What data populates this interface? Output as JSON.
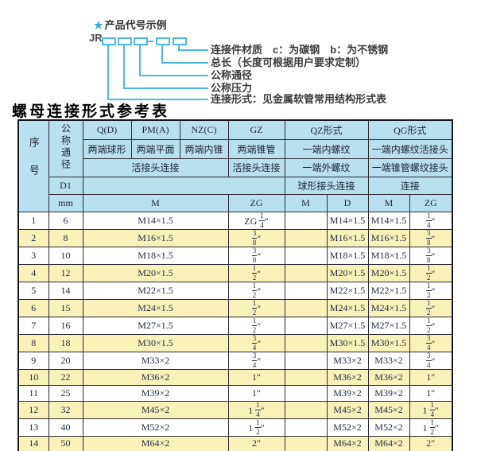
{
  "diagram": {
    "star": "★",
    "heading": "产品代号示例",
    "prefix": "JR",
    "labels": [
      "连接件材质　c：为碳钢　b：为不锈钢",
      "总长（长度可根据用户要求定制）",
      "公称通径",
      "公称压力",
      "连接形式：见金属软管常用结构形式表"
    ],
    "line_color": "#49b9e3"
  },
  "table": {
    "title": "螺母连接形式参考表",
    "colors": {
      "header_bg": "#b9e0f1",
      "alt_row_bg": "#f8f2ba",
      "row_bg": "#ffffff",
      "border": "#2b2b33",
      "text": "#1e2940"
    },
    "header": {
      "seq": "序号",
      "dn": "公称通径",
      "d1": "D1",
      "mm": "mm",
      "col_q": "Q(D)",
      "col_pm": "PM(A)",
      "col_nz": "NZ(C)",
      "col_gz": "GZ",
      "col_qz": "QZ形式",
      "col_qg": "QG形式",
      "q_desc": "两端球形",
      "pm_desc": "两端平面",
      "nz_desc": "两端内锥",
      "gz_desc": "两端锥管",
      "qz_desc1": "一端内螺纹",
      "qg_desc1": "一端内螺纹活接头",
      "union_conn": "活接头连接",
      "gz_conn": "活接头连接",
      "qz_desc2": "一端外螺纹",
      "qg_desc2": "一端锥管螺纹接头",
      "qz_conn": "球形接头连接",
      "qg_conn": "连接",
      "m_unit": "M",
      "gz_unit": "ZG",
      "qz_m": "M",
      "qz_d": "D",
      "qg_m": "M",
      "qg_zg": "ZG"
    },
    "rows": [
      {
        "no": "1",
        "dn": "6",
        "m": "M14×1.5",
        "gz": "ZG 1/4″",
        "qz_m": "",
        "qz_d": "M14×1.5",
        "qg_m": "M14×1.5",
        "qg_zg": "1/4″"
      },
      {
        "no": "2",
        "dn": "8",
        "m": "M16×1.5",
        "gz": "3/8″",
        "qz_m": "",
        "qz_d": "M16×1.5",
        "qg_m": "M16×1.5",
        "qg_zg": "3/8″"
      },
      {
        "no": "3",
        "dn": "10",
        "m": "M18×1.5",
        "gz": "3/8″",
        "qz_m": "",
        "qz_d": "M18×1.5",
        "qg_m": "M18×1.5",
        "qg_zg": "3/8″"
      },
      {
        "no": "4",
        "dn": "12",
        "m": "M20×1.5",
        "gz": "1/2″",
        "qz_m": "",
        "qz_d": "M20×1.5",
        "qg_m": "M20×1.5",
        "qg_zg": "1/2″"
      },
      {
        "no": "5",
        "dn": "14",
        "m": "M22×1.5",
        "gz": "1/2″",
        "qz_m": "",
        "qz_d": "M22×1.5",
        "qg_m": "M22×1.5",
        "qg_zg": "1/2″"
      },
      {
        "no": "6",
        "dn": "15",
        "m": "M24×1.5",
        "gz": "1/2″",
        "qz_m": "",
        "qz_d": "M24×1.5",
        "qg_m": "M24×1.5",
        "qg_zg": "1/2″"
      },
      {
        "no": "7",
        "dn": "16",
        "m": "M27×1.5",
        "gz": "1/2″",
        "qz_m": "",
        "qz_d": "M27×1.5",
        "qg_m": "M27×1.5",
        "qg_zg": "1/2″"
      },
      {
        "no": "8",
        "dn": "18",
        "m": "M30×1.5",
        "gz": "3/4″",
        "qz_m": "",
        "qz_d": "M30×1.5",
        "qg_m": "M30×1.5",
        "qg_zg": "3/4″"
      },
      {
        "no": "9",
        "dn": "20",
        "m": "M33×2",
        "gz": "3/4″",
        "qz_m": "",
        "qz_d": "M33×2",
        "qg_m": "M33×2",
        "qg_zg": "3/4″"
      },
      {
        "no": "10",
        "dn": "22",
        "m": "M36×2",
        "gz": "1″",
        "qz_m": "",
        "qz_d": "M36×2",
        "qg_m": "M36×2",
        "qg_zg": "1″"
      },
      {
        "no": "11",
        "dn": "25",
        "m": "M39×2",
        "gz": "1″",
        "qz_m": "",
        "qz_d": "M39×2",
        "qg_m": "M39×2",
        "qg_zg": "1″"
      },
      {
        "no": "12",
        "dn": "32",
        "m": "M45×2",
        "gz": "1 1/4″",
        "qz_m": "",
        "qz_d": "M45×2",
        "qg_m": "M45×2",
        "qg_zg": "1 1/4″"
      },
      {
        "no": "13",
        "dn": "40",
        "m": "M52×2",
        "gz": "1 1/2″",
        "qz_m": "",
        "qz_d": "M52×2",
        "qg_m": "M52×2",
        "qg_zg": "1 1/2″"
      },
      {
        "no": "14",
        "dn": "50",
        "m": "M64×2",
        "gz": "2″",
        "qz_m": "",
        "qz_d": "M64×2",
        "qg_m": "M64×2",
        "qg_zg": "2″"
      }
    ]
  }
}
